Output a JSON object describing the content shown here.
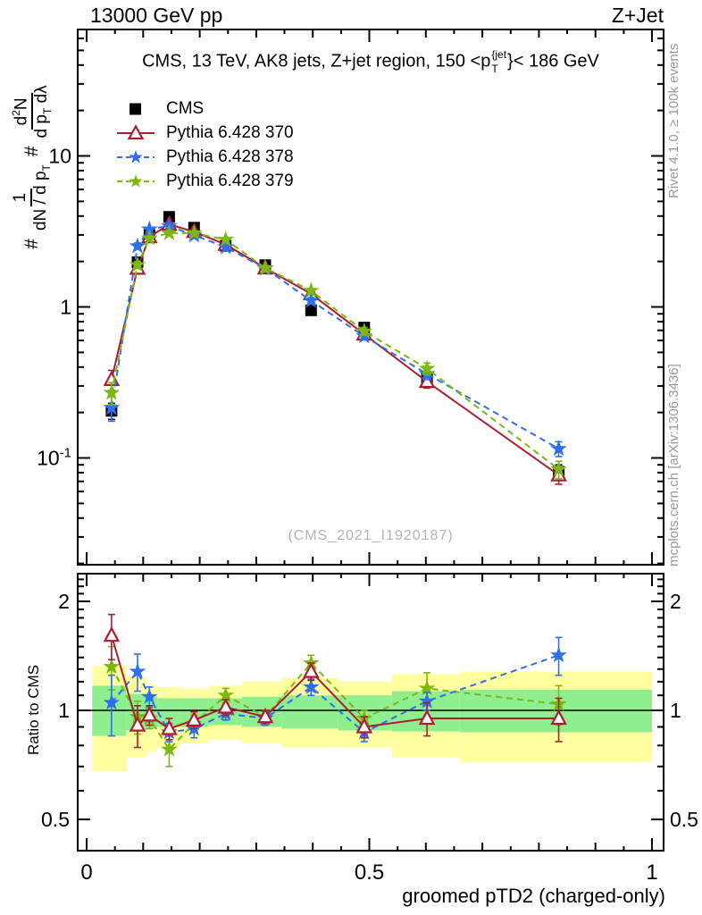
{
  "header": {
    "left": "13000 GeV pp",
    "right": "Z+Jet"
  },
  "panel_title": {
    "prefix": "CMS, 13 TeV, AK8 jets, Z+jet region, 150 <p",
    "sup": "{jet",
    "sub": "T",
    "suffix": "}< 186 GeV"
  },
  "ylabel": {
    "hash1": "#",
    "num1": "1",
    "den1_a": "dN / d p",
    "den1_sub": "T",
    "hash2": "#",
    "num2_a": "d",
    "num2_sup": "2",
    "num2_b": "N",
    "den2_a": "d p",
    "den2_sub": "T",
    "den2_b": " dλ"
  },
  "ratio_ylabel": "Ratio to CMS",
  "xlabel": "groomed pTD2 (charged-only)",
  "watermark": "(CMS_2021_I1920187)",
  "side_labels": {
    "top_right": "Rivet 4.1.0, ≥ 100k events",
    "bottom_right": "mcplots.cern.ch [arXiv:1306.3436]"
  },
  "colors": {
    "cms": "#000000",
    "py370": "#AA1E32",
    "py378": "#2F6FEA",
    "py379": "#7CB712",
    "band_yellow": "#FFFFA0",
    "band_green": "#8FEF8F",
    "frame": "#000000",
    "gray_text": "#999999"
  },
  "chart_data": {
    "type": "line",
    "title": "CMS, 13 TeV, AK8 jets, Z+jet region, 150 < pT{jet} < 186 GeV",
    "xlabel": "groomed pTD2 (charged-only)",
    "ylabel": "# 1/(dN/dpT) d2N/(dpT dlambda)",
    "ratio_ylabel": "Ratio to CMS",
    "x_range": [
      0,
      1
    ],
    "y_scale": "log",
    "y_range": [
      0.02,
      68
    ],
    "ratio_scale": "log",
    "ratio_range": [
      0.41,
      2.38
    ],
    "grid": false,
    "legend_position": "top-left",
    "x": [
      0.044,
      0.09,
      0.111,
      0.146,
      0.19,
      0.246,
      0.316,
      0.397,
      0.491,
      0.602,
      0.835
    ],
    "series": [
      {
        "name": "CMS",
        "marker": "square",
        "line": "none",
        "color": "#000000",
        "values": [
          0.205,
          1.98,
          3.0,
          3.95,
          3.35,
          2.54,
          1.89,
          0.95,
          0.73,
          0.34,
          0.081
        ],
        "yerr": [
          0.025,
          0.09,
          0.1,
          0.12,
          0.1,
          0.08,
          0.06,
          0.05,
          0.035,
          0.025,
          0.009
        ]
      },
      {
        "name": "Pythia 6.428 370",
        "marker": "triangle-open",
        "line": "solid",
        "color": "#AA1E32",
        "values": [
          0.33,
          1.8,
          2.91,
          3.52,
          3.15,
          2.59,
          1.81,
          1.22,
          0.66,
          0.32,
          0.077
        ],
        "yerr": [
          0.05,
          0.09,
          0.1,
          0.1,
          0.09,
          0.08,
          0.06,
          0.05,
          0.035,
          0.03,
          0.01
        ]
      },
      {
        "name": "Pythia 6.428 378",
        "marker": "star",
        "line": "dashed",
        "color": "#2F6FEA",
        "values": [
          0.215,
          2.53,
          3.27,
          3.44,
          2.98,
          2.49,
          1.8,
          1.1,
          0.64,
          0.36,
          0.115
        ],
        "yerr": [
          0.04,
          0.12,
          0.1,
          0.1,
          0.09,
          0.08,
          0.06,
          0.05,
          0.035,
          0.03,
          0.013
        ]
      },
      {
        "name": "Pythia 6.428 379",
        "marker": "star",
        "line": "dashed",
        "color": "#7CB712",
        "values": [
          0.27,
          1.9,
          2.85,
          3.08,
          3.08,
          2.79,
          1.81,
          1.28,
          0.69,
          0.39,
          0.084
        ],
        "yerr": [
          0.045,
          0.1,
          0.1,
          0.1,
          0.09,
          0.08,
          0.06,
          0.05,
          0.04,
          0.035,
          0.011
        ]
      }
    ],
    "ratio": {
      "reference": "CMS",
      "series": [
        {
          "name": "Pythia 6.428 370",
          "values": [
            1.61,
            0.91,
            0.97,
            0.89,
            0.94,
            1.02,
            0.96,
            1.28,
            0.9,
            0.95,
            0.95
          ],
          "yerr": [
            0.23,
            0.12,
            0.06,
            0.06,
            0.05,
            0.05,
            0.04,
            0.07,
            0.06,
            0.1,
            0.13
          ]
        },
        {
          "name": "Pythia 6.428 378",
          "values": [
            1.05,
            1.28,
            1.09,
            0.87,
            0.89,
            0.98,
            0.95,
            1.16,
            0.87,
            1.06,
            1.42
          ],
          "yerr": [
            0.2,
            0.15,
            0.07,
            0.05,
            0.05,
            0.04,
            0.04,
            0.06,
            0.05,
            0.06,
            0.17
          ]
        },
        {
          "name": "Pythia 6.428 379",
          "values": [
            1.32,
            0.96,
            0.95,
            0.78,
            0.92,
            1.1,
            0.96,
            1.35,
            0.95,
            1.15,
            1.04
          ],
          "yerr": [
            0.18,
            0.1,
            0.06,
            0.08,
            0.05,
            0.05,
            0.04,
            0.07,
            0.05,
            0.12,
            0.13
          ]
        }
      ],
      "band_edges": [
        0.01,
        0.07,
        0.105,
        0.125,
        0.165,
        0.215,
        0.275,
        0.345,
        0.445,
        0.54,
        0.66,
        1.0
      ],
      "yellow_band": {
        "lo": [
          0.68,
          0.74,
          0.77,
          0.79,
          0.81,
          0.83,
          0.81,
          0.79,
          0.79,
          0.74,
          0.72
        ],
        "hi": [
          1.33,
          1.24,
          1.18,
          1.16,
          1.15,
          1.17,
          1.2,
          1.23,
          1.2,
          1.26,
          1.28
        ]
      },
      "green_band": {
        "lo": [
          0.85,
          0.88,
          0.89,
          0.9,
          0.9,
          0.91,
          0.9,
          0.89,
          0.88,
          0.875,
          0.87
        ],
        "hi": [
          1.17,
          1.11,
          1.09,
          1.08,
          1.08,
          1.08,
          1.09,
          1.1,
          1.1,
          1.13,
          1.14
        ]
      }
    },
    "axis_labels": {
      "x": [
        {
          "t": 0,
          "text": "0"
        },
        {
          "t": 0.5,
          "text": "0.5"
        },
        {
          "t": 1,
          "text": "1"
        }
      ],
      "y": [
        {
          "v": 10,
          "text": "10"
        },
        {
          "v": 1,
          "text": "1"
        },
        {
          "v": 0.1,
          "text": "10",
          "sup": "-1"
        }
      ],
      "ratio": [
        {
          "v": 2,
          "text": "2"
        },
        {
          "v": 1,
          "text": "1"
        },
        {
          "v": 0.5,
          "text": "0.5"
        }
      ]
    }
  }
}
